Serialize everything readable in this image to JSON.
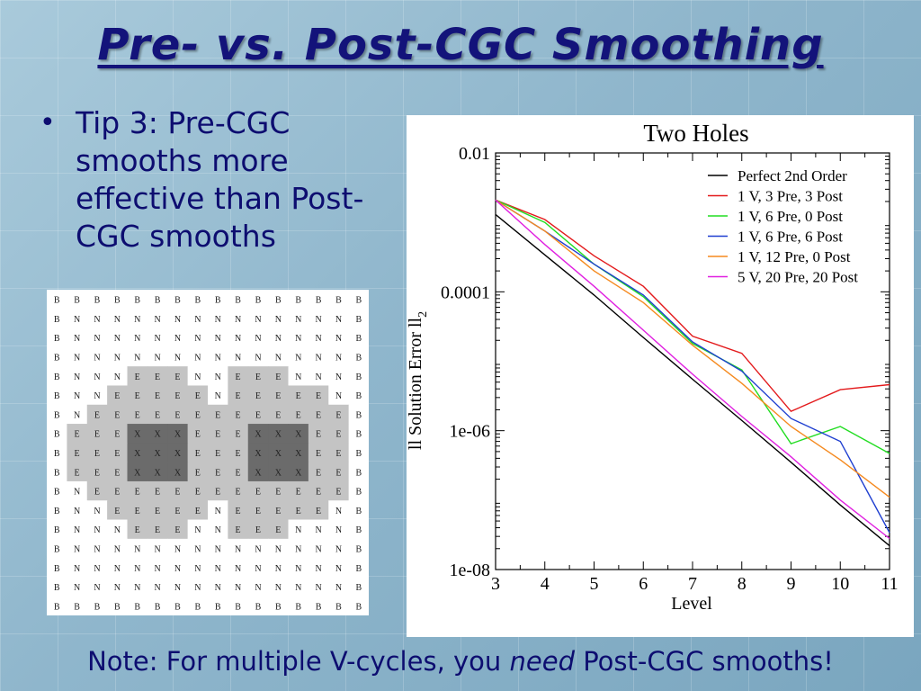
{
  "slide": {
    "title": "Pre- vs. Post-CGC Smoothing",
    "bullet": "Tip 3: Pre-CGC smooths more effective than Post-CGC smooths",
    "note_before": "Note: For multiple V-cycles, you ",
    "note_emph": "need",
    "note_after": " Post-CGC smooths!"
  },
  "grid": {
    "rows": [
      "BBBBBBBBBBBBBBBB",
      "BNNNNNNNNNNNNNNB",
      "BNNNNNNNNNNNNNNB",
      "BNNNNNNNNNNNNNNB",
      "BNNNEEENNEEENNNB",
      "BNNEEEEENEEEEENB",
      "BNEEEEEEEEEEEEEB",
      "BEEEXXXEEEXXXEEB",
      "BEEEXXXEEEXXXEEB",
      "BEEEXXXEEEXXXEEB",
      "BNEEEEEEEEEEEEEB",
      "BNNEEEEENEEEEENB",
      "BNNNEEENNEEENNNB",
      "BNNNNNNNNNNNNNNB",
      "BNNNNNNNNNNNNNNB",
      "BNNNNNNNNNNNNNNB",
      "BBBBBBBBBBBBBBBB"
    ],
    "colors": {
      "B": "#ffffff",
      "N": "#ffffff",
      "E": "#c4c4c4",
      "X": "#6b6b6b"
    }
  },
  "chart_data": {
    "type": "line",
    "title": "Two Holes",
    "xlabel": "Level",
    "ylabel": "ll Solution Error ll",
    "ylabel_sub": "2",
    "y_scale": "log",
    "xlim": [
      3,
      11
    ],
    "ylim": [
      1e-08,
      0.01
    ],
    "x_ticks": [
      "3",
      "4",
      "5",
      "6",
      "7",
      "8",
      "9",
      "10",
      "11"
    ],
    "y_ticks": [
      {
        "value": 0.01,
        "label": "0.01"
      },
      {
        "value": 0.0001,
        "label": "0.0001"
      },
      {
        "value": 1e-06,
        "label": "1e-06"
      },
      {
        "value": 1e-08,
        "label": "1e-08"
      }
    ],
    "legend_position": "top-right",
    "x": [
      3,
      4,
      5,
      6,
      7,
      8,
      9,
      10,
      11
    ],
    "series": [
      {
        "name": "Perfect 2nd Order",
        "color": "#000000",
        "values": [
          0.0013,
          0.00034,
          9e-05,
          2.2e-05,
          5.5e-06,
          1.4e-06,
          3.5e-07,
          8.5e-08,
          2.2e-08
        ]
      },
      {
        "name": "1 V, 3 Pre, 3 Post",
        "color": "#e31a1c",
        "values": [
          0.0021,
          0.0011,
          0.00033,
          0.00012,
          2.3e-05,
          1.3e-05,
          1.9e-06,
          3.9e-06,
          4.6e-06
        ]
      },
      {
        "name": "1 V, 6 Pre, 0 Post",
        "color": "#22dd22",
        "values": [
          0.0021,
          0.001,
          0.00025,
          8.5e-05,
          1.8e-05,
          7.5e-06,
          6.5e-07,
          1.15e-06,
          4.7e-07
        ]
      },
      {
        "name": "1 V, 6 Pre, 6 Post",
        "color": "#1f3fd0",
        "values": [
          0.0021,
          0.00075,
          0.00025,
          9e-05,
          1.9e-05,
          7.2e-06,
          1.5e-06,
          7e-07,
          3.4e-08
        ]
      },
      {
        "name": "1 V, 12 Pre, 0 Post",
        "color": "#f58a1f",
        "values": [
          0.0021,
          0.00075,
          0.0002,
          7e-05,
          1.7e-05,
          4.8e-06,
          1.15e-06,
          3.8e-07,
          1.1e-07
        ]
      },
      {
        "name": "5 V, 20 Pre, 20 Post",
        "color": "#e020e0",
        "values": [
          0.0021,
          0.00048,
          0.00012,
          2.8e-05,
          6.5e-06,
          1.6e-06,
          4.2e-07,
          1e-07,
          2.8e-08
        ]
      }
    ]
  }
}
